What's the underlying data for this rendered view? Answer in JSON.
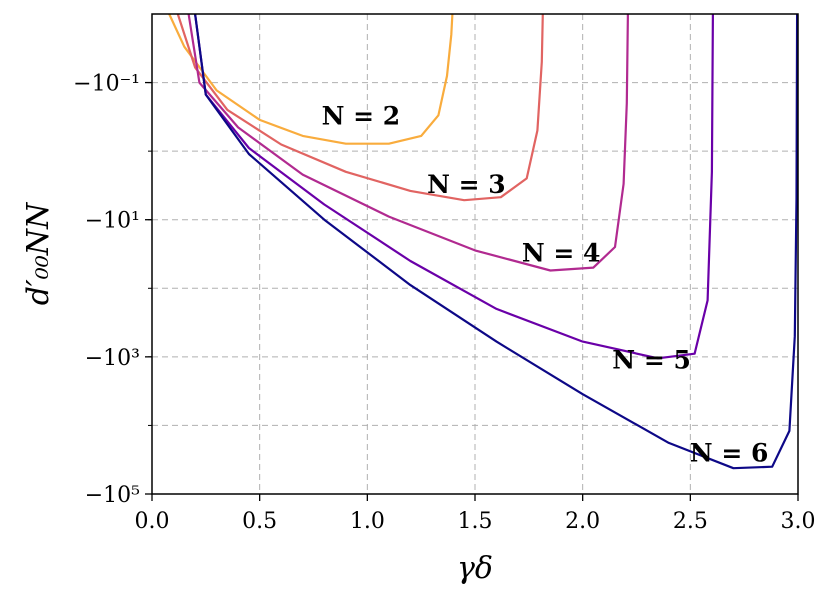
{
  "chart_data": {
    "type": "line",
    "xlabel": "γδ",
    "ylabel": "d′₀₀NN",
    "xlim": [
      0.0,
      3.0
    ],
    "ylim_log_magnitude": [
      -2,
      5
    ],
    "yscale": "symlog-negative",
    "grid": true,
    "x_ticks": [
      "0.0",
      "0.5",
      "1.0",
      "1.5",
      "2.0",
      "2.5",
      "3.0"
    ],
    "y_ticks": [
      {
        "value": -0.1,
        "label": "−10⁻¹"
      },
      {
        "value": -10,
        "label": "−10¹"
      },
      {
        "value": -1000,
        "label": "−10³"
      },
      {
        "value": -100000,
        "label": "−10⁵"
      }
    ],
    "series": [
      {
        "name": "N = 2",
        "color": "#f9ac3d",
        "x": [
          0.08,
          0.15,
          0.3,
          0.5,
          0.7,
          0.9,
          1.1,
          1.25,
          1.33,
          1.37,
          1.39,
          1.395
        ],
        "y": [
          -0.01,
          -0.03,
          -0.13,
          -0.35,
          -0.6,
          -0.78,
          -0.78,
          -0.6,
          -0.3,
          -0.08,
          -0.02,
          -0.01
        ]
      },
      {
        "name": "N = 3",
        "color": "#e16462",
        "x": [
          0.12,
          0.2,
          0.35,
          0.6,
          0.9,
          1.2,
          1.45,
          1.62,
          1.74,
          1.79,
          1.81,
          1.815
        ],
        "y": [
          -0.01,
          -0.06,
          -0.25,
          -0.8,
          -2.0,
          -3.8,
          -5.2,
          -4.7,
          -2.5,
          -0.5,
          -0.05,
          -0.01
        ]
      },
      {
        "name": "N = 4",
        "color": "#b12a90",
        "x": [
          0.17,
          0.22,
          0.4,
          0.7,
          1.1,
          1.5,
          1.85,
          2.05,
          2.15,
          2.19,
          2.205,
          2.21
        ],
        "y": [
          -0.01,
          -0.1,
          -0.45,
          -2.2,
          -9,
          -28,
          -55,
          -50,
          -25,
          -3,
          -0.2,
          -0.01
        ]
      },
      {
        "name": "N = 5",
        "color": "#6a00a8",
        "x": [
          0.2,
          0.25,
          0.45,
          0.8,
          1.2,
          1.6,
          2.0,
          2.35,
          2.52,
          2.58,
          2.6,
          2.605
        ],
        "y": [
          -0.01,
          -0.15,
          -0.9,
          -6,
          -40,
          -200,
          -600,
          -1050,
          -900,
          -150,
          -2,
          -0.01
        ]
      },
      {
        "name": "N = 6",
        "color": "#0d0887",
        "x": [
          0.2,
          0.25,
          0.45,
          0.8,
          1.2,
          1.6,
          2.0,
          2.4,
          2.7,
          2.88,
          2.96,
          2.985,
          2.993,
          2.996
        ],
        "y": [
          -0.01,
          -0.15,
          -1.1,
          -10,
          -90,
          -600,
          -3500,
          -18000,
          -42000,
          -40000,
          -12000,
          -500,
          -5,
          -0.01
        ]
      }
    ],
    "labels": [
      {
        "text": "N = 2",
        "x": 0.97,
        "y": -0.3
      },
      {
        "text": "N = 3",
        "x": 1.46,
        "y": -3.0
      },
      {
        "text": "N = 4",
        "x": 1.9,
        "y": -30
      },
      {
        "text": "N = 5",
        "x": 2.32,
        "y": -1100
      },
      {
        "text": "N = 6",
        "x": 2.68,
        "y": -25000
      }
    ]
  }
}
